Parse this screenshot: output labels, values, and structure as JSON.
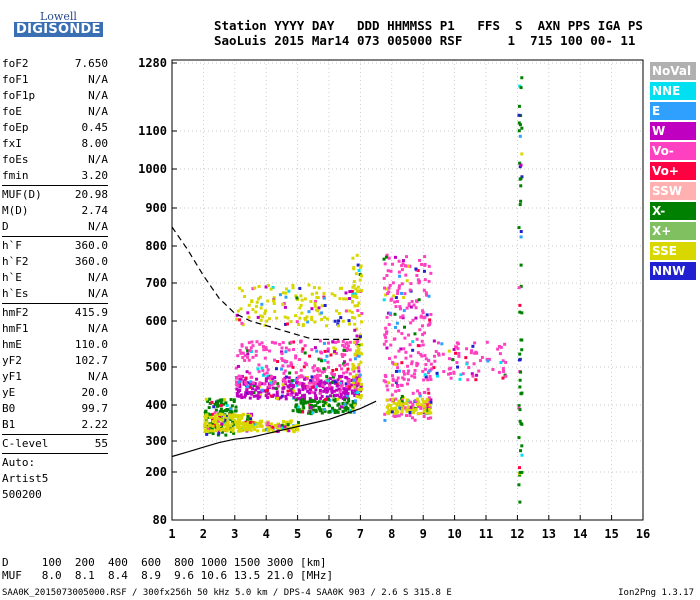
{
  "logo": {
    "line1": "Lowell",
    "line2": "DIGISONDE"
  },
  "header": {
    "line1": "Station YYYY DAY   DDD HHMMSS P1   FFS  S  AXN PPS IGA PS",
    "line2": "SaoLuis 2015 Mar14 073 005000 RSF      1  715 100 00- 11"
  },
  "params": {
    "group1": [
      {
        "label": "foF2",
        "value": "7.650"
      },
      {
        "label": "foF1",
        "value": "N/A"
      },
      {
        "label": "foF1p",
        "value": "N/A"
      },
      {
        "label": "foE",
        "value": "N/A"
      },
      {
        "label": "foEp",
        "value": "0.45"
      },
      {
        "label": "fxI",
        "value": "8.00"
      },
      {
        "label": "foEs",
        "value": "N/A"
      },
      {
        "label": "fmin",
        "value": "3.20"
      }
    ],
    "group2": [
      {
        "label": "MUF(D)",
        "value": "20.98"
      },
      {
        "label": "M(D)",
        "value": "2.74"
      },
      {
        "label": "D",
        "value": "N/A"
      }
    ],
    "group3": [
      {
        "label": "h`F",
        "value": "360.0"
      },
      {
        "label": "h`F2",
        "value": "360.0"
      },
      {
        "label": "h`E",
        "value": "N/A"
      },
      {
        "label": "h`Es",
        "value": "N/A"
      }
    ],
    "group4": [
      {
        "label": "hmF2",
        "value": "415.9"
      },
      {
        "label": "hmF1",
        "value": "N/A"
      },
      {
        "label": "hmE",
        "value": "110.0"
      },
      {
        "label": "yF2",
        "value": "102.7"
      },
      {
        "label": "yF1",
        "value": "N/A"
      },
      {
        "label": "yE",
        "value": "20.0"
      },
      {
        "label": "B0",
        "value": "99.7"
      },
      {
        "label": "B1",
        "value": "2.22"
      }
    ],
    "group5": [
      {
        "label": "C-level",
        "value": "55"
      }
    ],
    "auto": [
      "Auto:",
      "Artist5",
      "500200"
    ]
  },
  "legend": [
    {
      "label": "NoVal",
      "color": "#b0b0b0"
    },
    {
      "label": "NNE",
      "color": "#00e0f0"
    },
    {
      "label": "E",
      "color": "#30a0ff"
    },
    {
      "label": "W",
      "color": "#c000c0"
    },
    {
      "label": "Vo-",
      "color": "#ff40c0"
    },
    {
      "label": "Vo+",
      "color": "#ff0040"
    },
    {
      "label": "SSW",
      "color": "#ffb0b0"
    },
    {
      "label": "X-",
      "color": "#008000"
    },
    {
      "label": "X+",
      "color": "#80c060"
    },
    {
      "label": "SSE",
      "color": "#d8d800"
    },
    {
      "label": "NNW",
      "color": "#2020d0"
    }
  ],
  "bottom": {
    "dline": "D     100  200  400  600  800 1000 1500 3000 [km]",
    "mufline": "MUF   8.0  8.1  8.4  8.9  9.6 10.6 13.5 21.0 [MHz]"
  },
  "footer": {
    "left": "SAA0K_2015073005000.RSF / 300fx256h 50 kHz 5.0 km / DPS-4 SAA0K 903 / 2.6 S 315.8 E",
    "right": "Ion2Png 1.3.17"
  },
  "chart_data": {
    "type": "scatter",
    "xlim": [
      1,
      16
    ],
    "ylim": [
      80,
      1280
    ],
    "xticks": [
      "1",
      "2",
      "3",
      "4",
      "5",
      "6",
      "7",
      "8",
      "9",
      "10",
      "11",
      "12",
      "13",
      "14",
      "15",
      "16"
    ],
    "yticks": [
      "80",
      "200",
      "300",
      "400",
      "500",
      "600",
      "700",
      "800",
      "900",
      "1000",
      "1100",
      "1280"
    ],
    "clusters": [
      {
        "x": [
          2.0,
          3.0
        ],
        "y": [
          320,
          420
        ],
        "series": "X-",
        "n": 120
      },
      {
        "x": [
          2.0,
          3.5
        ],
        "y": [
          330,
          380
        ],
        "series": "SSE",
        "n": 140
      },
      {
        "x": [
          3.0,
          7.0
        ],
        "y": [
          420,
          480
        ],
        "series": "W",
        "n": 320
      },
      {
        "x": [
          3.0,
          7.0
        ],
        "y": [
          450,
          560
        ],
        "series": "Vo-",
        "n": 260
      },
      {
        "x": [
          3.0,
          5.0
        ],
        "y": [
          330,
          360
        ],
        "series": "SSE",
        "n": 120
      },
      {
        "x": [
          4.8,
          6.8
        ],
        "y": [
          380,
          420
        ],
        "series": "X-",
        "n": 120
      },
      {
        "x": [
          3.0,
          6.8
        ],
        "y": [
          590,
          700
        ],
        "series": "SSE",
        "n": 140
      },
      {
        "x": [
          6.7,
          7.0
        ],
        "y": [
          420,
          780
        ],
        "series": "SSE",
        "n": 80
      },
      {
        "x": [
          7.7,
          9.2
        ],
        "y": [
          360,
          780
        ],
        "series": "Vo-",
        "n": 280
      },
      {
        "x": [
          7.8,
          9.2
        ],
        "y": [
          380,
          420
        ],
        "series": "SSE",
        "n": 100
      },
      {
        "x": [
          9.2,
          11.6
        ],
        "y": [
          470,
          560
        ],
        "series": "Vo-",
        "n": 80
      },
      {
        "x": [
          12.0,
          12.1
        ],
        "y": [
          100,
          1260
        ],
        "series": "X-",
        "n": 60
      }
    ],
    "curves": [
      {
        "name": "",
        "style": "dashed",
        "x": [
          1.0,
          1.5,
          2.0,
          2.5,
          3.0,
          3.5,
          4.0,
          4.5,
          5.0,
          5.5,
          6.0,
          6.5,
          7.0
        ],
        "y": [
          850,
          790,
          720,
          660,
          620,
          600,
          590,
          580,
          570,
          560,
          560,
          560,
          560
        ]
      },
      {
        "name": "",
        "style": "solid",
        "x": [
          1.0,
          1.5,
          2.0,
          2.5,
          3.0,
          3.5,
          4.0,
          4.5,
          5.0,
          5.5,
          6.0,
          6.5,
          7.0,
          7.5
        ],
        "y": [
          250,
          265,
          280,
          295,
          305,
          310,
          320,
          330,
          340,
          350,
          360,
          375,
          390,
          410
        ]
      }
    ]
  }
}
